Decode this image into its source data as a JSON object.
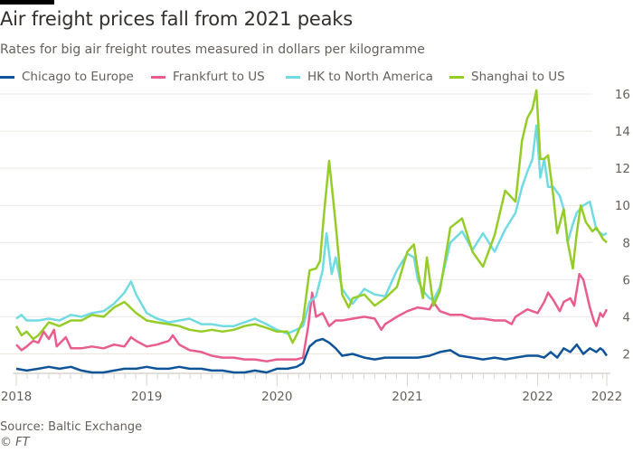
{
  "header": {
    "title": "Air freight prices fall from 2021 peaks",
    "subtitle": "Rates for big air freight routes measured in dollars per kilogramme"
  },
  "footer": {
    "source": "Source: Baltic Exchange",
    "credit": "© FT"
  },
  "chart_data": {
    "type": "line",
    "title": "Air freight prices fall from 2021 peaks",
    "subtitle": "Rates for big air freight routes measured in dollars per kilogramme",
    "xlabel": "",
    "ylabel": "Dollars per kilogramme",
    "xlim": [
      2018.0,
      2022.53
    ],
    "ylim": [
      1,
      16
    ],
    "y_ticks": [
      2,
      4,
      6,
      8,
      10,
      12,
      14,
      16
    ],
    "y_axis_position": "right",
    "x_ticks": [
      {
        "x": 2018.0,
        "label": "2018"
      },
      {
        "x": 2019.0,
        "label": "2019"
      },
      {
        "x": 2020.0,
        "label": "2020"
      },
      {
        "x": 2021.0,
        "label": "2021"
      },
      {
        "x": 2022.0,
        "label": "2022"
      },
      {
        "x": 2022.53,
        "label": "2022"
      }
    ],
    "grid": true,
    "legend_position": "top",
    "series": [
      {
        "name": "Chicago to Europe",
        "color": "#0f5499",
        "points": [
          [
            2018.0,
            1.2
          ],
          [
            2018.08,
            1.1
          ],
          [
            2018.17,
            1.2
          ],
          [
            2018.25,
            1.3
          ],
          [
            2018.33,
            1.2
          ],
          [
            2018.42,
            1.3
          ],
          [
            2018.5,
            1.1
          ],
          [
            2018.58,
            1.0
          ],
          [
            2018.67,
            1.0
          ],
          [
            2018.75,
            1.1
          ],
          [
            2018.83,
            1.2
          ],
          [
            2018.92,
            1.2
          ],
          [
            2019.0,
            1.3
          ],
          [
            2019.08,
            1.2
          ],
          [
            2019.17,
            1.2
          ],
          [
            2019.25,
            1.3
          ],
          [
            2019.33,
            1.2
          ],
          [
            2019.42,
            1.2
          ],
          [
            2019.5,
            1.1
          ],
          [
            2019.58,
            1.1
          ],
          [
            2019.67,
            1.0
          ],
          [
            2019.75,
            1.0
          ],
          [
            2019.83,
            1.1
          ],
          [
            2019.92,
            1.0
          ],
          [
            2020.0,
            1.2
          ],
          [
            2020.08,
            1.2
          ],
          [
            2020.15,
            1.3
          ],
          [
            2020.2,
            1.5
          ],
          [
            2020.25,
            2.4
          ],
          [
            2020.3,
            2.7
          ],
          [
            2020.35,
            2.8
          ],
          [
            2020.4,
            2.6
          ],
          [
            2020.45,
            2.3
          ],
          [
            2020.5,
            1.9
          ],
          [
            2020.58,
            2.0
          ],
          [
            2020.67,
            1.8
          ],
          [
            2020.75,
            1.7
          ],
          [
            2020.83,
            1.8
          ],
          [
            2020.92,
            1.8
          ],
          [
            2021.0,
            1.8
          ],
          [
            2021.08,
            1.8
          ],
          [
            2021.17,
            1.9
          ],
          [
            2021.25,
            2.1
          ],
          [
            2021.33,
            2.2
          ],
          [
            2021.4,
            1.9
          ],
          [
            2021.5,
            1.8
          ],
          [
            2021.58,
            1.7
          ],
          [
            2021.67,
            1.8
          ],
          [
            2021.75,
            1.7
          ],
          [
            2021.83,
            1.8
          ],
          [
            2021.92,
            1.9
          ],
          [
            2022.0,
            1.9
          ],
          [
            2022.05,
            1.8
          ],
          [
            2022.1,
            2.1
          ],
          [
            2022.15,
            1.8
          ],
          [
            2022.2,
            2.3
          ],
          [
            2022.25,
            2.1
          ],
          [
            2022.3,
            2.5
          ],
          [
            2022.35,
            2.0
          ],
          [
            2022.4,
            2.3
          ],
          [
            2022.45,
            2.1
          ],
          [
            2022.48,
            2.3
          ],
          [
            2022.5,
            2.2
          ],
          [
            2022.53,
            1.9
          ]
        ]
      },
      {
        "name": "Frankfurt to US",
        "color": "#e95d8c",
        "points": [
          [
            2018.0,
            2.5
          ],
          [
            2018.04,
            2.2
          ],
          [
            2018.08,
            2.4
          ],
          [
            2018.13,
            2.7
          ],
          [
            2018.17,
            2.6
          ],
          [
            2018.21,
            3.2
          ],
          [
            2018.25,
            2.8
          ],
          [
            2018.29,
            3.3
          ],
          [
            2018.31,
            2.4
          ],
          [
            2018.38,
            2.9
          ],
          [
            2018.42,
            2.3
          ],
          [
            2018.5,
            2.3
          ],
          [
            2018.58,
            2.4
          ],
          [
            2018.67,
            2.3
          ],
          [
            2018.75,
            2.5
          ],
          [
            2018.83,
            2.4
          ],
          [
            2018.88,
            2.9
          ],
          [
            2018.92,
            2.7
          ],
          [
            2019.0,
            2.4
          ],
          [
            2019.08,
            2.5
          ],
          [
            2019.17,
            2.7
          ],
          [
            2019.2,
            3.0
          ],
          [
            2019.25,
            2.5
          ],
          [
            2019.33,
            2.2
          ],
          [
            2019.42,
            2.1
          ],
          [
            2019.5,
            1.9
          ],
          [
            2019.58,
            1.8
          ],
          [
            2019.67,
            1.8
          ],
          [
            2019.75,
            1.7
          ],
          [
            2019.83,
            1.7
          ],
          [
            2019.92,
            1.6
          ],
          [
            2020.0,
            1.7
          ],
          [
            2020.08,
            1.7
          ],
          [
            2020.15,
            1.7
          ],
          [
            2020.2,
            1.8
          ],
          [
            2020.24,
            3.5
          ],
          [
            2020.27,
            5.3
          ],
          [
            2020.3,
            4.0
          ],
          [
            2020.35,
            4.2
          ],
          [
            2020.4,
            3.5
          ],
          [
            2020.45,
            3.8
          ],
          [
            2020.5,
            3.8
          ],
          [
            2020.58,
            3.9
          ],
          [
            2020.67,
            4.0
          ],
          [
            2020.75,
            3.9
          ],
          [
            2020.8,
            3.3
          ],
          [
            2020.83,
            3.6
          ],
          [
            2020.92,
            4.0
          ],
          [
            2021.0,
            4.3
          ],
          [
            2021.08,
            4.5
          ],
          [
            2021.17,
            4.4
          ],
          [
            2021.2,
            4.8
          ],
          [
            2021.25,
            4.3
          ],
          [
            2021.33,
            4.1
          ],
          [
            2021.42,
            4.1
          ],
          [
            2021.5,
            3.9
          ],
          [
            2021.58,
            3.9
          ],
          [
            2021.67,
            3.8
          ],
          [
            2021.75,
            3.8
          ],
          [
            2021.8,
            3.6
          ],
          [
            2021.83,
            4.0
          ],
          [
            2021.92,
            4.4
          ],
          [
            2022.0,
            4.2
          ],
          [
            2022.05,
            4.8
          ],
          [
            2022.08,
            5.3
          ],
          [
            2022.12,
            4.9
          ],
          [
            2022.17,
            4.3
          ],
          [
            2022.2,
            4.8
          ],
          [
            2022.25,
            5.0
          ],
          [
            2022.28,
            4.6
          ],
          [
            2022.32,
            6.3
          ],
          [
            2022.35,
            6.0
          ],
          [
            2022.4,
            4.5
          ],
          [
            2022.43,
            3.8
          ],
          [
            2022.45,
            3.5
          ],
          [
            2022.48,
            4.2
          ],
          [
            2022.5,
            4.0
          ],
          [
            2022.53,
            4.4
          ]
        ]
      },
      {
        "name": "HK to North America",
        "color": "#70dbe3",
        "points": [
          [
            2018.0,
            3.9
          ],
          [
            2018.04,
            4.1
          ],
          [
            2018.08,
            3.8
          ],
          [
            2018.17,
            3.8
          ],
          [
            2018.25,
            3.9
          ],
          [
            2018.33,
            3.8
          ],
          [
            2018.42,
            4.1
          ],
          [
            2018.5,
            4.0
          ],
          [
            2018.58,
            4.2
          ],
          [
            2018.67,
            4.3
          ],
          [
            2018.75,
            4.7
          ],
          [
            2018.83,
            5.3
          ],
          [
            2018.88,
            5.9
          ],
          [
            2018.92,
            5.2
          ],
          [
            2019.0,
            4.2
          ],
          [
            2019.08,
            3.9
          ],
          [
            2019.17,
            3.7
          ],
          [
            2019.25,
            3.8
          ],
          [
            2019.33,
            3.9
          ],
          [
            2019.42,
            3.6
          ],
          [
            2019.5,
            3.6
          ],
          [
            2019.58,
            3.5
          ],
          [
            2019.67,
            3.5
          ],
          [
            2019.75,
            3.7
          ],
          [
            2019.83,
            3.9
          ],
          [
            2019.92,
            3.6
          ],
          [
            2020.0,
            3.3
          ],
          [
            2020.08,
            3.1
          ],
          [
            2020.15,
            3.3
          ],
          [
            2020.2,
            3.5
          ],
          [
            2020.25,
            4.8
          ],
          [
            2020.3,
            5.1
          ],
          [
            2020.35,
            6.5
          ],
          [
            2020.38,
            8.5
          ],
          [
            2020.42,
            6.3
          ],
          [
            2020.45,
            7.2
          ],
          [
            2020.5,
            5.5
          ],
          [
            2020.58,
            4.7
          ],
          [
            2020.67,
            5.5
          ],
          [
            2020.75,
            5.2
          ],
          [
            2020.83,
            5.1
          ],
          [
            2020.92,
            6.5
          ],
          [
            2021.0,
            7.4
          ],
          [
            2021.05,
            7.2
          ],
          [
            2021.08,
            6.0
          ],
          [
            2021.12,
            5.4
          ],
          [
            2021.17,
            5.0
          ],
          [
            2021.2,
            4.9
          ],
          [
            2021.25,
            5.6
          ],
          [
            2021.33,
            8.0
          ],
          [
            2021.42,
            8.6
          ],
          [
            2021.5,
            7.6
          ],
          [
            2021.58,
            8.5
          ],
          [
            2021.67,
            7.5
          ],
          [
            2021.75,
            8.7
          ],
          [
            2021.83,
            9.6
          ],
          [
            2021.88,
            11.0
          ],
          [
            2021.92,
            11.8
          ],
          [
            2021.96,
            12.5
          ],
          [
            2021.99,
            14.3
          ],
          [
            2022.02,
            11.5
          ],
          [
            2022.05,
            12.5
          ],
          [
            2022.08,
            11.0
          ],
          [
            2022.12,
            11.0
          ],
          [
            2022.17,
            10.5
          ],
          [
            2022.2,
            9.8
          ],
          [
            2022.23,
            8.0
          ],
          [
            2022.27,
            9.0
          ],
          [
            2022.3,
            9.6
          ],
          [
            2022.35,
            10.0
          ],
          [
            2022.4,
            10.2
          ],
          [
            2022.45,
            8.7
          ],
          [
            2022.5,
            8.4
          ],
          [
            2022.53,
            8.5
          ]
        ]
      },
      {
        "name": "Shanghai to US",
        "color": "#96cc28",
        "points": [
          [
            2018.0,
            3.5
          ],
          [
            2018.04,
            3.0
          ],
          [
            2018.08,
            3.2
          ],
          [
            2018.13,
            2.8
          ],
          [
            2018.17,
            3.0
          ],
          [
            2018.25,
            3.7
          ],
          [
            2018.33,
            3.5
          ],
          [
            2018.42,
            3.8
          ],
          [
            2018.5,
            3.8
          ],
          [
            2018.58,
            4.1
          ],
          [
            2018.67,
            4.0
          ],
          [
            2018.75,
            4.5
          ],
          [
            2018.83,
            4.8
          ],
          [
            2018.92,
            4.2
          ],
          [
            2019.0,
            3.8
          ],
          [
            2019.08,
            3.7
          ],
          [
            2019.17,
            3.6
          ],
          [
            2019.25,
            3.5
          ],
          [
            2019.33,
            3.3
          ],
          [
            2019.42,
            3.2
          ],
          [
            2019.5,
            3.3
          ],
          [
            2019.58,
            3.2
          ],
          [
            2019.67,
            3.3
          ],
          [
            2019.75,
            3.5
          ],
          [
            2019.83,
            3.6
          ],
          [
            2019.92,
            3.4
          ],
          [
            2020.0,
            3.2
          ],
          [
            2020.08,
            3.2
          ],
          [
            2020.12,
            2.6
          ],
          [
            2020.15,
            3.0
          ],
          [
            2020.2,
            3.8
          ],
          [
            2020.25,
            6.5
          ],
          [
            2020.3,
            6.6
          ],
          [
            2020.33,
            7.0
          ],
          [
            2020.36,
            9.5
          ],
          [
            2020.4,
            12.4
          ],
          [
            2020.45,
            9.0
          ],
          [
            2020.5,
            5.2
          ],
          [
            2020.55,
            4.5
          ],
          [
            2020.58,
            5.0
          ],
          [
            2020.67,
            5.2
          ],
          [
            2020.75,
            4.6
          ],
          [
            2020.83,
            5.0
          ],
          [
            2020.92,
            5.6
          ],
          [
            2021.0,
            7.5
          ],
          [
            2021.05,
            7.9
          ],
          [
            2021.08,
            6.5
          ],
          [
            2021.12,
            5.0
          ],
          [
            2021.15,
            7.2
          ],
          [
            2021.2,
            4.6
          ],
          [
            2021.25,
            5.4
          ],
          [
            2021.33,
            8.8
          ],
          [
            2021.42,
            9.3
          ],
          [
            2021.5,
            7.5
          ],
          [
            2021.58,
            6.7
          ],
          [
            2021.67,
            8.4
          ],
          [
            2021.75,
            10.8
          ],
          [
            2021.83,
            10.2
          ],
          [
            2021.88,
            13.5
          ],
          [
            2021.92,
            14.7
          ],
          [
            2021.96,
            15.2
          ],
          [
            2021.99,
            16.2
          ],
          [
            2022.02,
            12.5
          ],
          [
            2022.05,
            12.5
          ],
          [
            2022.08,
            12.7
          ],
          [
            2022.12,
            10.5
          ],
          [
            2022.15,
            8.5
          ],
          [
            2022.2,
            9.8
          ],
          [
            2022.23,
            8.0
          ],
          [
            2022.27,
            6.6
          ],
          [
            2022.3,
            8.5
          ],
          [
            2022.33,
            10.0
          ],
          [
            2022.37,
            9.1
          ],
          [
            2022.42,
            8.6
          ],
          [
            2022.45,
            8.8
          ],
          [
            2022.5,
            8.2
          ],
          [
            2022.53,
            8.0
          ]
        ]
      }
    ]
  }
}
